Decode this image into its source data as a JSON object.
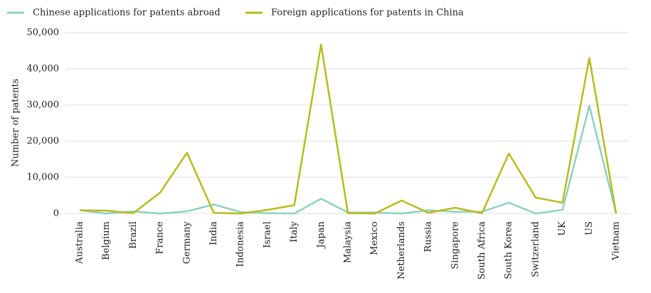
{
  "chart_data": {
    "type": "line",
    "y_label": "Number of patents",
    "categories": [
      "Australia",
      "Belgium",
      "Brazil",
      "France",
      "Germany",
      "India",
      "Indonesia",
      "Israel",
      "Italy",
      "Japan",
      "Malaysia",
      "Mexico",
      "Netherlands",
      "Russia",
      "Singapore",
      "South Africa",
      "South Korea",
      "Switzerland",
      "UK",
      "US",
      "Vietnam"
    ],
    "series": [
      {
        "name": "Chinese applications for patents abroad",
        "color": "#8fd1c1",
        "values": [
          900,
          0,
          600,
          0,
          600,
          2500,
          400,
          100,
          0,
          4100,
          300,
          300,
          0,
          900,
          500,
          500,
          3000,
          0,
          1000,
          29800,
          0
        ]
      },
      {
        "name": "Foreign applications for patents in China",
        "color": "#b9bb1b",
        "values": [
          900,
          800,
          100,
          5800,
          16800,
          200,
          0,
          1000,
          2300,
          46700,
          100,
          0,
          3600,
          200,
          1600,
          100,
          16600,
          4400,
          3000,
          43000,
          0
        ]
      }
    ],
    "ylim": [
      0,
      50000
    ],
    "yticks": [
      0,
      {
        "value": 10000,
        "label": "10,000"
      },
      {
        "value": 20000,
        "label": "20,000"
      },
      {
        "value": 30000,
        "label": "30,000"
      },
      {
        "value": 40000,
        "label": "40,000"
      },
      {
        "value": 50000,
        "label": "50,000"
      }
    ],
    "grid": true,
    "legend": "top-left"
  }
}
